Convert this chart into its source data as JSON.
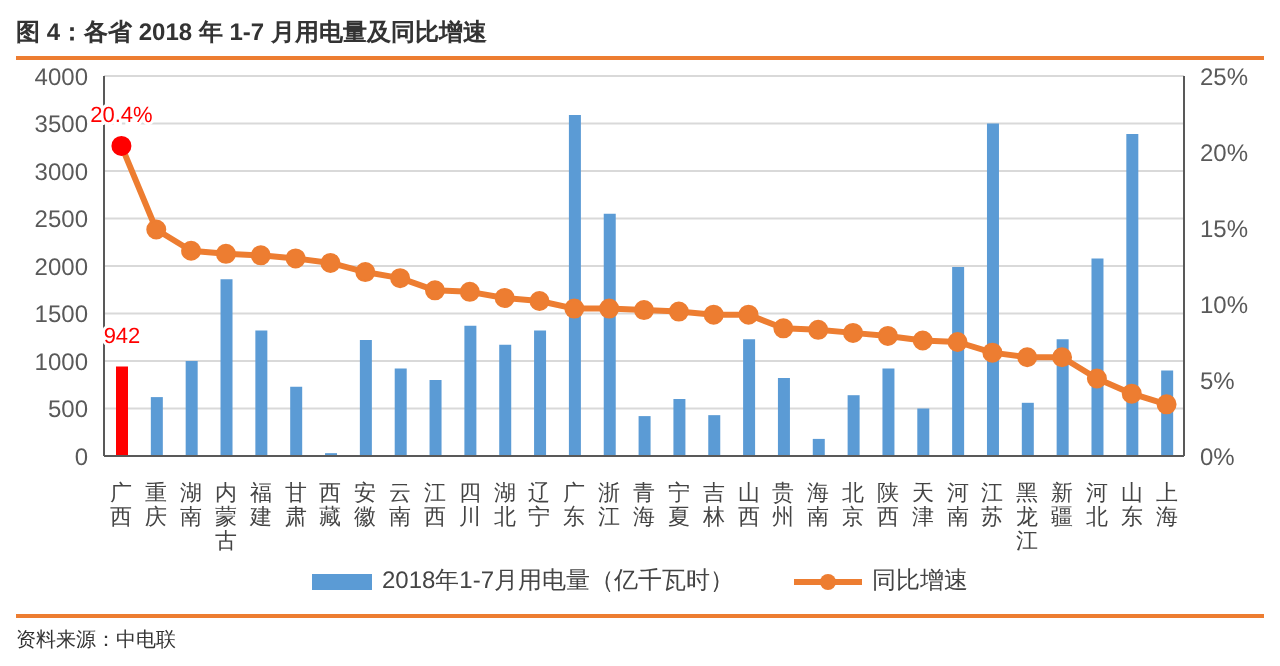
{
  "chart_data": {
    "type": "bar",
    "title": "图 4：各省 2018 年 1-7 月用电量及同比增速",
    "categories": [
      "广西",
      "重庆",
      "湖南",
      "内蒙古",
      "福建",
      "甘肃",
      "西藏",
      "安徽",
      "云南",
      "江西",
      "四川",
      "湖北",
      "辽宁",
      "广东",
      "浙江",
      "青海",
      "宁夏",
      "吉林",
      "山西",
      "贵州",
      "海南",
      "北京",
      "陕西",
      "天津",
      "河南",
      "江苏",
      "黑龙江",
      "新疆",
      "河北",
      "山东",
      "上海"
    ],
    "series": [
      {
        "name": "2018年1-7月用电量（亿千瓦时）",
        "color": "#5b9bd5",
        "colors": [
          "#ff0000",
          "#5b9bd5",
          "#5b9bd5",
          "#5b9bd5",
          "#5b9bd5",
          "#5b9bd5",
          "#5b9bd5",
          "#5b9bd5",
          "#5b9bd5",
          "#5b9bd5",
          "#5b9bd5",
          "#5b9bd5",
          "#5b9bd5",
          "#5b9bd5",
          "#5b9bd5",
          "#5b9bd5",
          "#5b9bd5",
          "#5b9bd5",
          "#5b9bd5",
          "#5b9bd5",
          "#5b9bd5",
          "#5b9bd5",
          "#5b9bd5",
          "#5b9bd5",
          "#5b9bd5",
          "#5b9bd5",
          "#5b9bd5",
          "#5b9bd5",
          "#5b9bd5",
          "#5b9bd5",
          "#5b9bd5"
        ],
        "values": [
          942,
          620,
          1000,
          1860,
          1320,
          730,
          30,
          1220,
          920,
          800,
          1370,
          1170,
          1320,
          3590,
          2550,
          420,
          600,
          430,
          1230,
          820,
          180,
          640,
          920,
          500,
          1990,
          3500,
          560,
          1230,
          2080,
          3390,
          900
        ],
        "value_labels": [
          "942",
          null,
          null,
          null,
          null,
          null,
          null,
          null,
          null,
          null,
          null,
          null,
          null,
          null,
          null,
          null,
          null,
          null,
          null,
          null,
          null,
          null,
          null,
          null,
          null,
          null,
          null,
          null,
          null,
          null,
          null
        ]
      },
      {
        "name": "同比增速",
        "type": "line",
        "axis": "y2",
        "color": "#ed7d31",
        "colors": [
          "#ff0000",
          "#ed7d31",
          "#ed7d31",
          "#ed7d31",
          "#ed7d31",
          "#ed7d31",
          "#ed7d31",
          "#ed7d31",
          "#ed7d31",
          "#ed7d31",
          "#ed7d31",
          "#ed7d31",
          "#ed7d31",
          "#ed7d31",
          "#ed7d31",
          "#ed7d31",
          "#ed7d31",
          "#ed7d31",
          "#ed7d31",
          "#ed7d31",
          "#ed7d31",
          "#ed7d31",
          "#ed7d31",
          "#ed7d31",
          "#ed7d31",
          "#ed7d31",
          "#ed7d31",
          "#ed7d31",
          "#ed7d31",
          "#ed7d31",
          "#ed7d31"
        ],
        "values": [
          20.4,
          14.9,
          13.5,
          13.3,
          13.2,
          13.0,
          12.7,
          12.1,
          11.7,
          10.9,
          10.8,
          10.4,
          10.2,
          9.7,
          9.7,
          9.6,
          9.5,
          9.3,
          9.3,
          8.4,
          8.3,
          8.1,
          7.9,
          7.6,
          7.5,
          6.8,
          6.5,
          6.5,
          5.1,
          4.1,
          3.4
        ],
        "value_labels": [
          "20.4%",
          null,
          null,
          null,
          null,
          null,
          null,
          null,
          null,
          null,
          null,
          null,
          null,
          null,
          null,
          null,
          null,
          null,
          null,
          null,
          null,
          null,
          null,
          null,
          null,
          null,
          null,
          null,
          null,
          null,
          null
        ]
      }
    ],
    "ylim": [
      0,
      4000
    ],
    "yticks": [
      0,
      500,
      1000,
      1500,
      2000,
      2500,
      3000,
      3500,
      4000
    ],
    "y2lim": [
      0,
      25
    ],
    "y2ticks": [
      {
        "value": 0,
        "label": "0%"
      },
      {
        "value": 5,
        "label": "5%"
      },
      {
        "value": 10,
        "label": "10%"
      },
      {
        "value": 15,
        "label": "15%"
      },
      {
        "value": 20,
        "label": "20%"
      },
      {
        "value": 25,
        "label": "25%"
      }
    ],
    "grid": "y",
    "legend": "bottom",
    "marker": "circle",
    "line_style": "solid",
    "annotations": [
      "资料来源：中电联"
    ]
  }
}
